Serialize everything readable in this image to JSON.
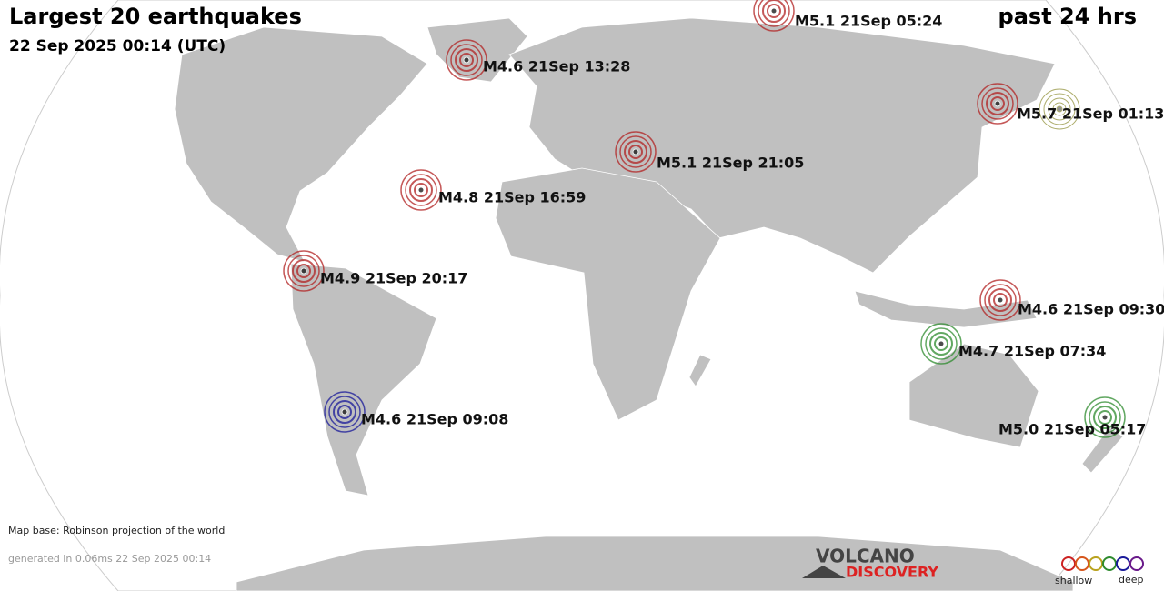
{
  "header": {
    "title": "Largest 20 earthquakes",
    "subtitle": "22 Sep 2025 00:14 (UTC)",
    "period": "past 24 hrs"
  },
  "quakes": [
    {
      "label": "M5.1 21Sep 05:24",
      "color": "#b22222"
    },
    {
      "label": "M4.6 21Sep 13:28",
      "color": "#b22222"
    },
    {
      "label": "M5.7 21Sep 01:13",
      "color": "#b22222"
    },
    {
      "label": "M5.1 21Sep 21:05",
      "color": "#b22222"
    },
    {
      "label": "M4.8 21Sep 16:59",
      "color": "#b22222"
    },
    {
      "label": "M4.9 21Sep 20:17",
      "color": "#b22222"
    },
    {
      "label": "M4.6 21Sep 09:30",
      "color": "#b22222"
    },
    {
      "label": "M4.7 21Sep 07:34",
      "color": "#2e8b2e"
    },
    {
      "label": "M4.6 21Sep 09:08",
      "color": "#1a1a9a"
    },
    {
      "label": "M5.0 21Sep 05:17",
      "color": "#2e8b2e"
    }
  ],
  "footer": {
    "map_base": "Map base: Robinson projection of the world",
    "generated": "generated in 0.06ms 22 Sep 2025 00:14"
  },
  "logo": {
    "line1": "VOLCANO",
    "line2": "DISCOVERY"
  },
  "legend": {
    "shallow": "shallow",
    "deep": "deep"
  }
}
